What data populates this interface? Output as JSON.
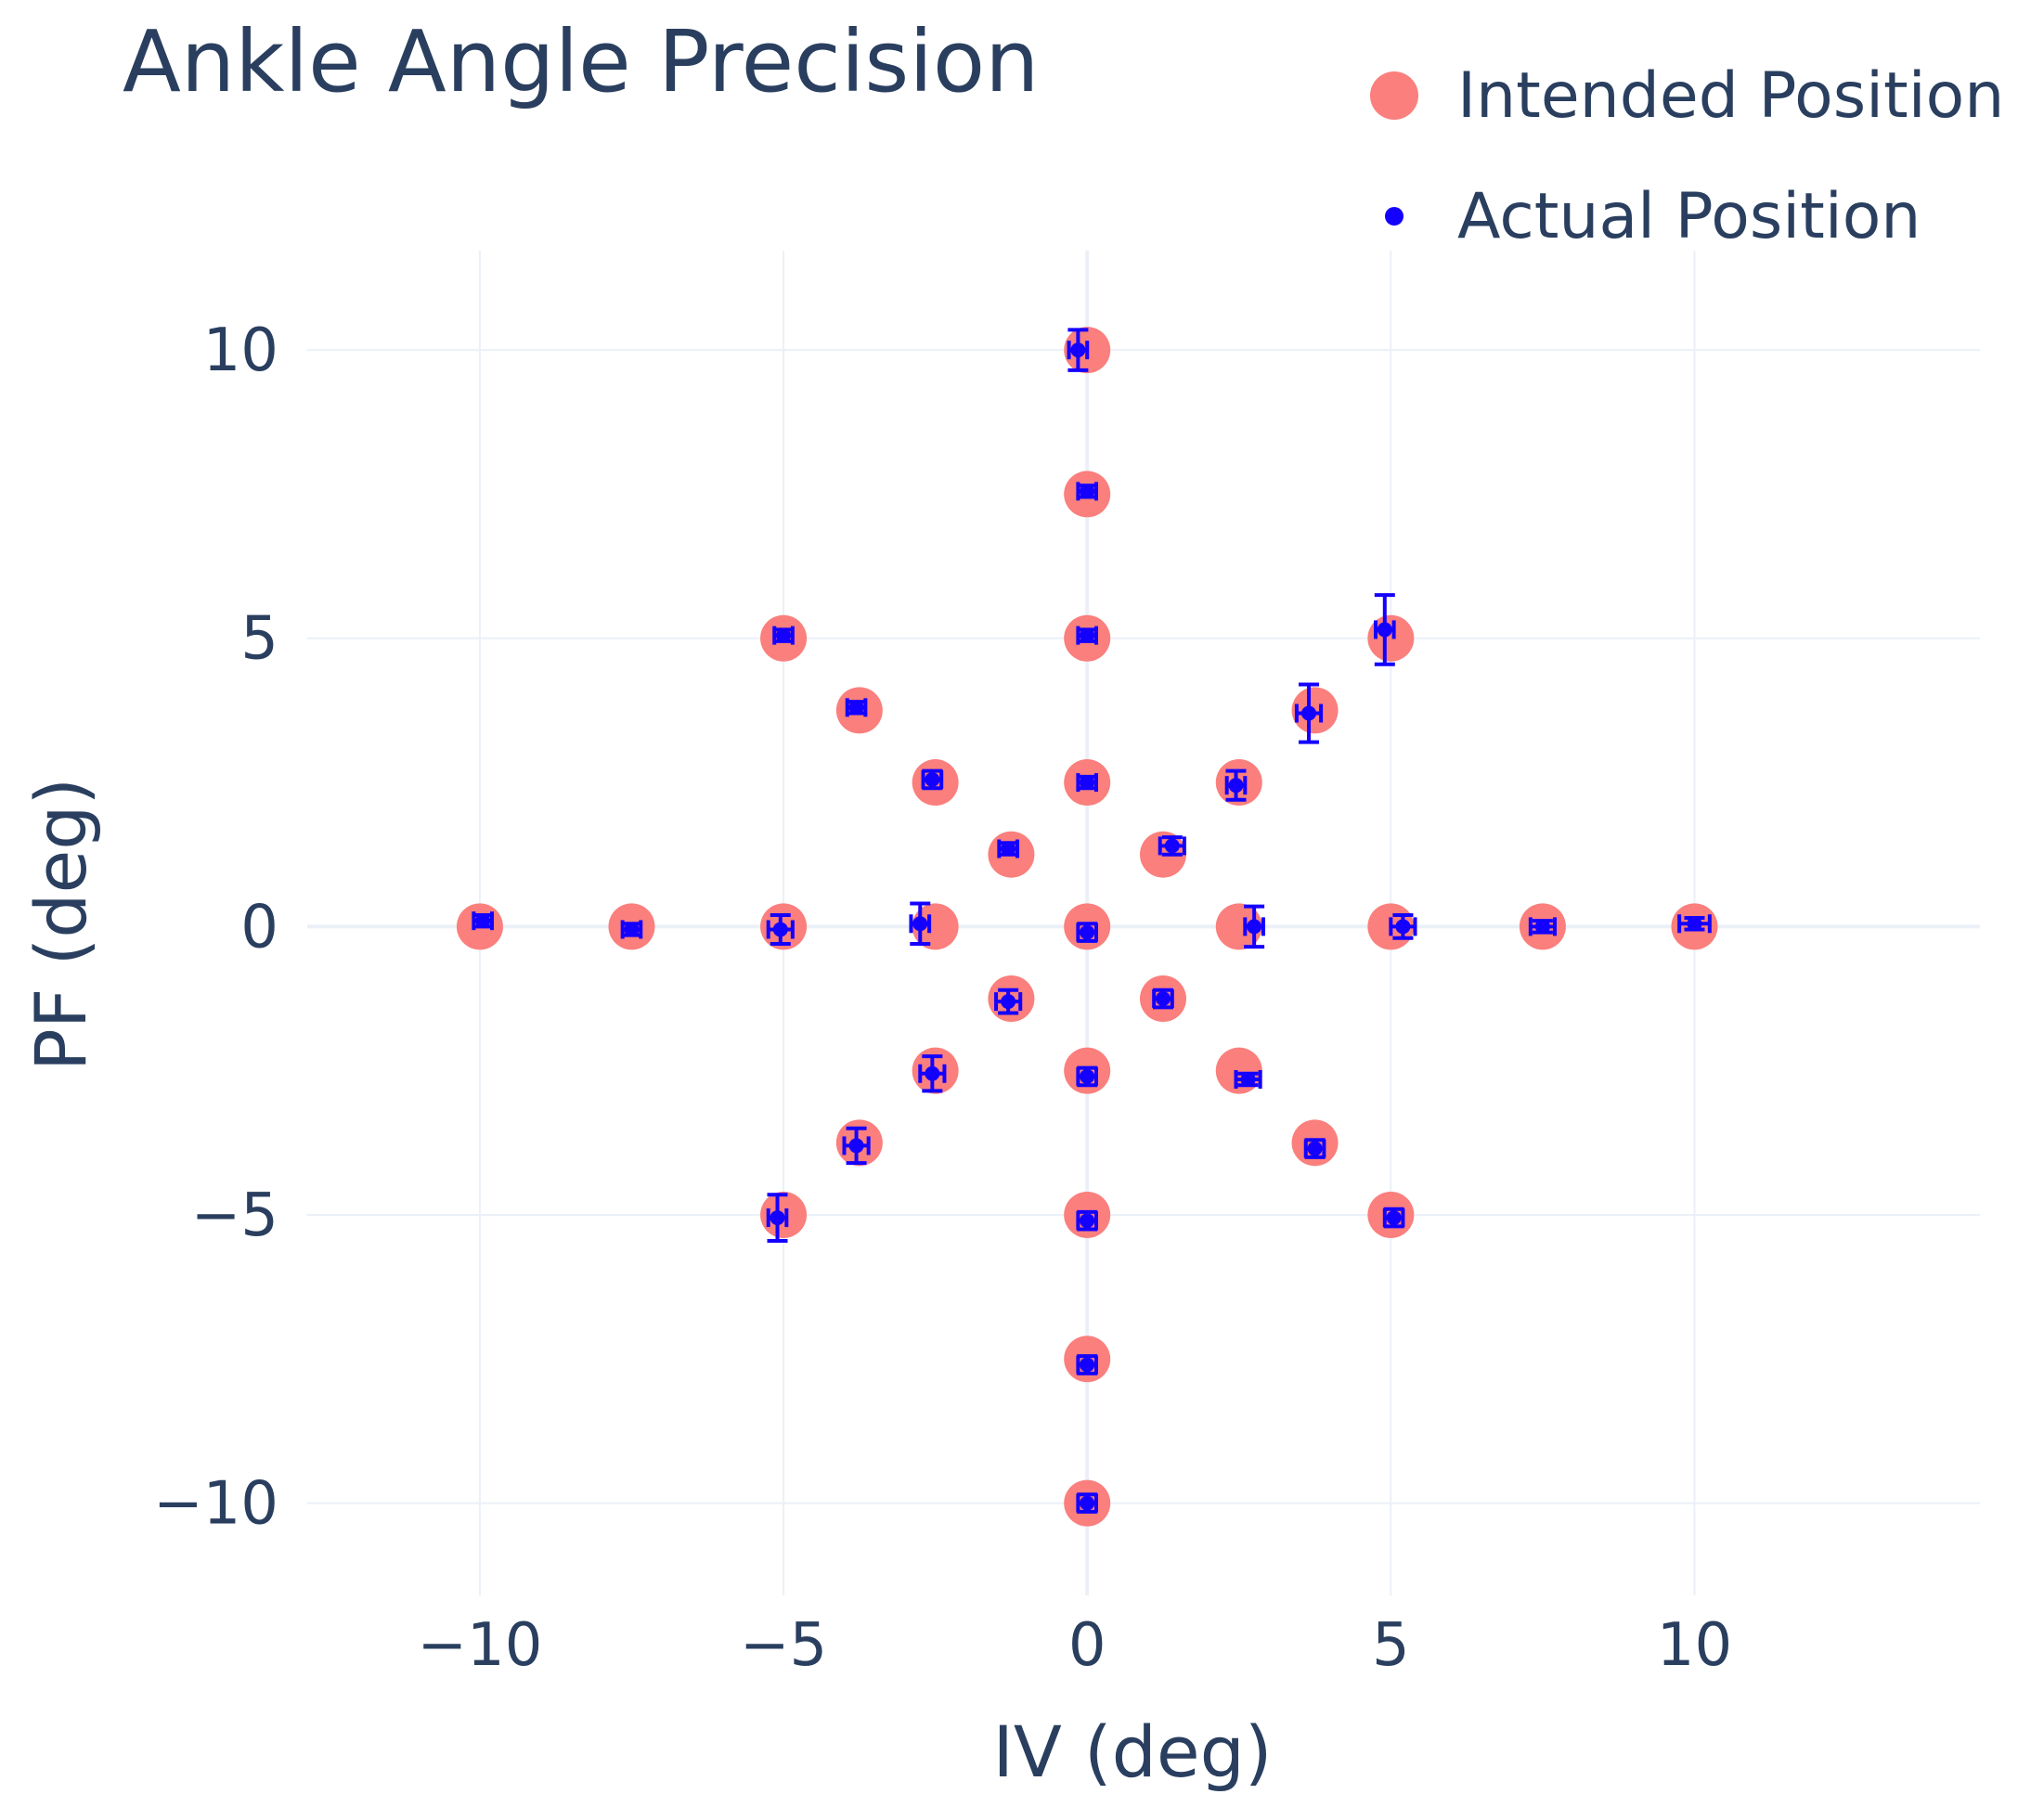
{
  "chart_data": {
    "type": "scatter",
    "title": "Ankle Angle Precision",
    "xlabel": "IV (deg)",
    "ylabel": "PF (deg)",
    "xlim": [
      -13.3,
      14.7
    ],
    "ylim": [
      -11.6,
      11.0
    ],
    "xticks": [
      -10,
      -5,
      0,
      5,
      10
    ],
    "yticks": [
      -10,
      -5,
      0,
      5,
      10
    ],
    "xtick_labels": [
      "−10",
      "−5",
      "0",
      "5",
      "10"
    ],
    "ytick_labels": [
      "−10",
      "−5",
      "0",
      "5",
      "10"
    ],
    "grid": true,
    "legend_position": "top-right",
    "colors": {
      "intended": "#fa7f7d",
      "actual": "#1400ff",
      "grid": "#ebf0f8",
      "zeroline": "#ebf0f8",
      "text": "#2a3f5f"
    },
    "series": [
      {
        "name": "Intended Position",
        "marker": "large-circle",
        "points": [
          [
            -10,
            0
          ],
          [
            -7.5,
            0
          ],
          [
            -5,
            0
          ],
          [
            -2.5,
            0
          ],
          [
            0,
            0
          ],
          [
            2.5,
            0
          ],
          [
            5,
            0
          ],
          [
            7.5,
            0
          ],
          [
            10,
            0
          ],
          [
            0,
            10
          ],
          [
            0,
            7.5
          ],
          [
            0,
            5
          ],
          [
            0,
            2.5
          ],
          [
            0,
            -2.5
          ],
          [
            0,
            -5
          ],
          [
            0,
            -7.5
          ],
          [
            0,
            -10
          ],
          [
            -5,
            5
          ],
          [
            -3.75,
            3.75
          ],
          [
            -2.5,
            2.5
          ],
          [
            -1.25,
            1.25
          ],
          [
            1.25,
            1.25
          ],
          [
            2.5,
            2.5
          ],
          [
            3.75,
            3.75
          ],
          [
            5,
            5
          ],
          [
            -1.25,
            -1.25
          ],
          [
            -2.5,
            -2.5
          ],
          [
            -3.75,
            -3.75
          ],
          [
            -5,
            -5
          ],
          [
            1.25,
            -1.25
          ],
          [
            2.5,
            -2.5
          ],
          [
            3.75,
            -3.75
          ],
          [
            5,
            -5
          ]
        ]
      },
      {
        "name": "Actual Position",
        "marker": "small-dot-with-error-bars",
        "points": [
          {
            "x": -9.95,
            "y": 0.1,
            "ex": 0.15,
            "ey": 0.1
          },
          {
            "x": -7.5,
            "y": -0.05,
            "ex": 0.15,
            "ey": 0.1
          },
          {
            "x": -5.05,
            "y": -0.05,
            "ex": 0.2,
            "ey": 0.25
          },
          {
            "x": -2.75,
            "y": 0.05,
            "ex": 0.15,
            "ey": 0.35
          },
          {
            "x": 0,
            "y": -0.1,
            "ex": 0.15,
            "ey": 0.15
          },
          {
            "x": 2.75,
            "y": 0.0,
            "ex": 0.15,
            "ey": 0.35
          },
          {
            "x": 5.2,
            "y": 0.0,
            "ex": 0.2,
            "ey": 0.2
          },
          {
            "x": 7.5,
            "y": 0.0,
            "ex": 0.2,
            "ey": 0.1
          },
          {
            "x": 10.0,
            "y": 0.05,
            "ex": 0.25,
            "ey": 0.1
          },
          {
            "x": -0.15,
            "y": 10.0,
            "ex": 0.15,
            "ey": 0.35
          },
          {
            "x": 0,
            "y": 7.55,
            "ex": 0.15,
            "ey": 0.1
          },
          {
            "x": 0,
            "y": 5.05,
            "ex": 0.15,
            "ey": 0.1
          },
          {
            "x": 0,
            "y": 2.5,
            "ex": 0.15,
            "ey": 0.1
          },
          {
            "x": 0,
            "y": -2.6,
            "ex": 0.15,
            "ey": 0.15
          },
          {
            "x": 0,
            "y": -5.1,
            "ex": 0.15,
            "ey": 0.15
          },
          {
            "x": 0,
            "y": -7.6,
            "ex": 0.15,
            "ey": 0.15
          },
          {
            "x": 0,
            "y": -10.0,
            "ex": 0.15,
            "ey": 0.15
          },
          {
            "x": -5.0,
            "y": 5.05,
            "ex": 0.15,
            "ey": 0.1
          },
          {
            "x": -3.8,
            "y": 3.8,
            "ex": 0.15,
            "ey": 0.1
          },
          {
            "x": -2.55,
            "y": 2.55,
            "ex": 0.15,
            "ey": 0.15
          },
          {
            "x": -1.3,
            "y": 1.35,
            "ex": 0.15,
            "ey": 0.1
          },
          {
            "x": 1.4,
            "y": 1.4,
            "ex": 0.2,
            "ey": 0.15
          },
          {
            "x": 2.45,
            "y": 2.45,
            "ex": 0.15,
            "ey": 0.25
          },
          {
            "x": 3.65,
            "y": 3.7,
            "ex": 0.2,
            "ey": 0.5
          },
          {
            "x": 4.9,
            "y": 5.15,
            "ex": 0.15,
            "ey": 0.6
          },
          {
            "x": -1.3,
            "y": -1.3,
            "ex": 0.2,
            "ey": 0.2
          },
          {
            "x": -2.55,
            "y": -2.55,
            "ex": 0.2,
            "ey": 0.3
          },
          {
            "x": -3.8,
            "y": -3.8,
            "ex": 0.2,
            "ey": 0.3
          },
          {
            "x": -5.1,
            "y": -5.05,
            "ex": 0.15,
            "ey": 0.4
          },
          {
            "x": 1.25,
            "y": -1.25,
            "ex": 0.15,
            "ey": 0.15
          },
          {
            "x": 2.65,
            "y": -2.65,
            "ex": 0.2,
            "ey": 0.1
          },
          {
            "x": 3.75,
            "y": -3.85,
            "ex": 0.15,
            "ey": 0.15
          },
          {
            "x": 5.05,
            "y": -5.05,
            "ex": 0.15,
            "ey": 0.15
          }
        ]
      }
    ]
  }
}
